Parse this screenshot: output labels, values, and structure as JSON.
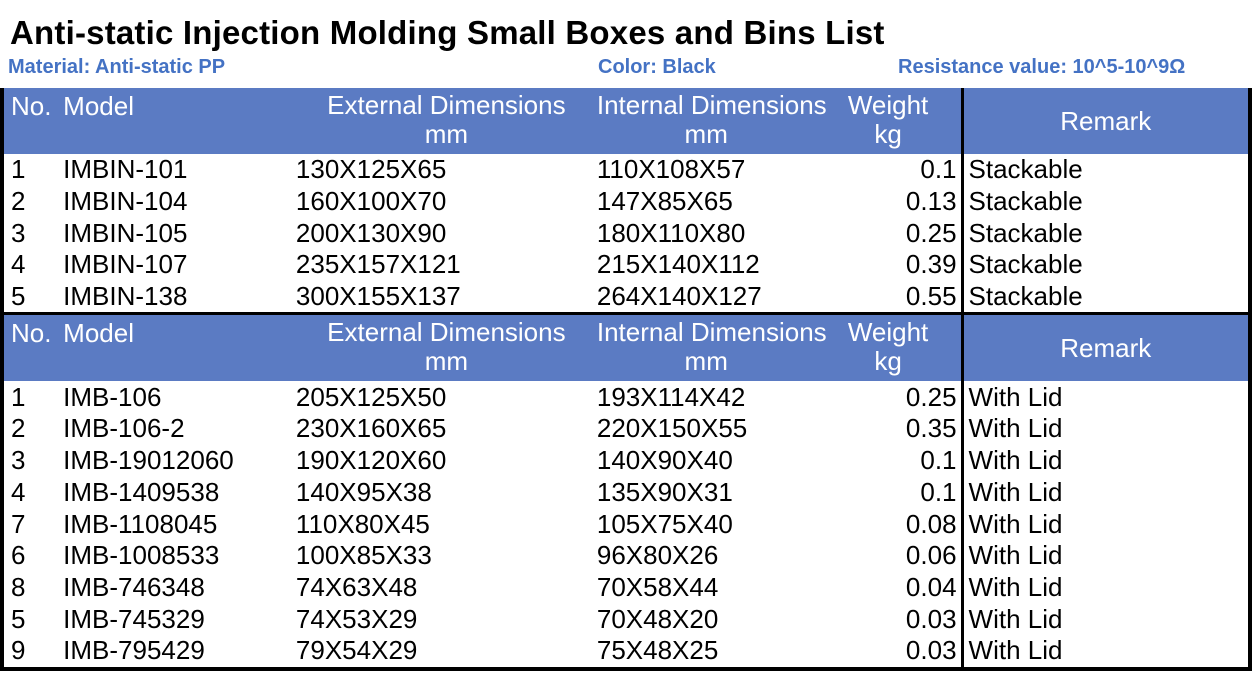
{
  "page": {
    "title": "Anti-static Injection Molding Small Boxes and Bins List"
  },
  "info": {
    "material": "Material: Anti-static PP",
    "color": "Color: Black",
    "resistance": "Resistance value: 10^5-10^9Ω"
  },
  "columns": {
    "no": "No.",
    "model": "Model",
    "external_line1": "External Dimensions",
    "external_line2": "mm",
    "internal_line1": "Internal Dimensions",
    "internal_line2": "mm",
    "weight_line1": "Weight",
    "weight_line2": "kg",
    "remark": "Remark"
  },
  "tables": [
    {
      "name": "stackable-bins",
      "rows": [
        [
          "1",
          "IMBIN-101",
          "130X125X65",
          "110X108X57",
          "0.1",
          "Stackable"
        ],
        [
          "2",
          "IMBIN-104",
          "160X100X70",
          "147X85X65",
          "0.13",
          "Stackable"
        ],
        [
          "3",
          "IMBIN-105",
          "200X130X90",
          "180X110X80",
          "0.25",
          "Stackable"
        ],
        [
          "4",
          "IMBIN-107",
          "235X157X121",
          "215X140X112",
          "0.39",
          "Stackable"
        ],
        [
          "5",
          "IMBIN-138",
          "300X155X137",
          "264X140X127",
          "0.55",
          "Stackable"
        ]
      ]
    },
    {
      "name": "lidded-boxes",
      "rows": [
        [
          "1",
          "IMB-106",
          "205X125X50",
          "193X114X42",
          "0.25",
          "With Lid"
        ],
        [
          "2",
          "IMB-106-2",
          "230X160X65",
          "220X150X55",
          "0.35",
          "With Lid"
        ],
        [
          "3",
          "IMB-19012060",
          "190X120X60",
          "140X90X40",
          "0.1",
          "With Lid"
        ],
        [
          "4",
          "IMB-1409538",
          "140X95X38",
          "135X90X31",
          "0.1",
          "With Lid"
        ],
        [
          "7",
          "IMB-1108045",
          "110X80X45",
          "105X75X40",
          "0.08",
          "With Lid"
        ],
        [
          "6",
          "IMB-1008533",
          "100X85X33",
          "96X80X26",
          "0.06",
          "With Lid"
        ],
        [
          "8",
          "IMB-746348",
          "74X63X48",
          "70X58X44",
          "0.04",
          "With Lid"
        ],
        [
          "5",
          "IMB-745329",
          "74X53X29",
          "70X48X20",
          "0.03",
          "With Lid"
        ],
        [
          "9",
          "IMB-795429",
          "79X54X29",
          "75X48X25",
          "0.03",
          "With Lid"
        ]
      ]
    }
  ],
  "colors": {
    "header_bg": "#5B7BC3",
    "accent_text": "#4472C4",
    "border": "#000000"
  }
}
